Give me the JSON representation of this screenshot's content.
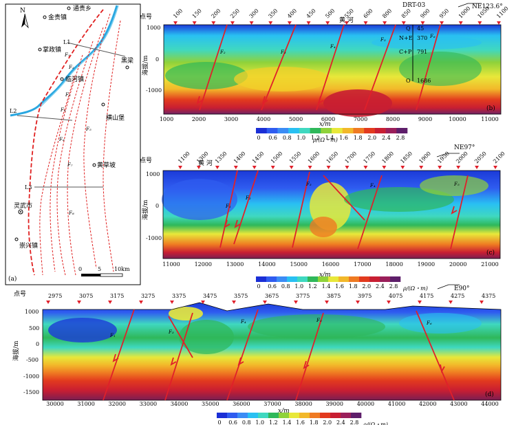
{
  "map": {
    "panel_label": "(a)",
    "north": "N",
    "towns": [
      "通贵乡",
      "金贵镇",
      "掌政镇",
      "临河镇",
      "黑梁",
      "横山堡",
      "黄草坡",
      "灵武市",
      "崇兴镇"
    ],
    "lines": [
      "L1",
      "L2",
      "L3"
    ],
    "faults": [
      "F₁",
      "F₂",
      "F₃",
      "F₄",
      "F₅",
      "F₆",
      "F₇",
      "F₈"
    ],
    "scale_labels": [
      "0",
      "5",
      "10km"
    ]
  },
  "common": {
    "station_label": "点号",
    "elevation_label": "海拔/m",
    "x_label": "x/m",
    "colorbar_unit": "ρ/(Ω・m)",
    "colorbar_ticks": [
      "0",
      "0.6",
      "0.8",
      "1.0",
      "1.2",
      "1.4",
      "1.6",
      "1.8",
      "2.0",
      "2.4",
      "2.8"
    ],
    "colorbar_colors": [
      "#1b2fd6",
      "#2f5cf0",
      "#3b8cf5",
      "#29c0f2",
      "#3fd8c0",
      "#2fb85a",
      "#8fd23a",
      "#e8e83a",
      "#f2b82a",
      "#ef7a22",
      "#e23a1e",
      "#c81e32",
      "#9a1e5a",
      "#5e1e6a"
    ]
  },
  "panels": [
    {
      "label": "(b)",
      "azimuth": "NE123.6°",
      "river": "黄 河",
      "stations": [
        "100",
        "150",
        "200",
        "250",
        "300",
        "350",
        "400",
        "450",
        "500",
        "550",
        "600",
        "800",
        "850",
        "900",
        "950",
        "1000",
        "1050",
        "1100"
      ],
      "y_ticks": [
        "1000",
        "0",
        "-1000"
      ],
      "x_ticks": [
        "1000",
        "2000",
        "3000",
        "4000",
        "5000",
        "6000",
        "7000",
        "8000",
        "9000",
        "10000",
        "11000"
      ],
      "faults": [
        "F₂",
        "F₃",
        "F₄",
        "F₅",
        "F₆"
      ],
      "well": {
        "name": "DRT-03",
        "strata": [
          "Q",
          "N+E",
          "C+P",
          "O"
        ],
        "depths": [
          "45",
          "370",
          "791",
          "1686"
        ]
      }
    },
    {
      "label": "(c)",
      "azimuth": "NE97°",
      "river": "黄 河",
      "stations": [
        "1100",
        "1300",
        "1350",
        "1400",
        "1450",
        "1500",
        "1550",
        "1600",
        "1650",
        "1700",
        "1750",
        "1800",
        "1850",
        "1900",
        "1950",
        "2000",
        "2050",
        "2100"
      ],
      "y_ticks": [
        "1000",
        "0",
        "-1000"
      ],
      "x_ticks": [
        "11000",
        "12000",
        "13000",
        "14000",
        "15000",
        "16000",
        "17000",
        "18000",
        "19000",
        "20000",
        "21000"
      ],
      "faults": [
        "F₁",
        "F₂",
        "F₃",
        "F₄",
        "F₅"
      ]
    },
    {
      "label": "(d)",
      "azimuth": "E90°",
      "stations": [
        "2975",
        "3075",
        "3175",
        "3275",
        "3375",
        "3475",
        "3575",
        "3675",
        "3775",
        "3875",
        "3975",
        "4075",
        "4175",
        "4275",
        "4375"
      ],
      "y_ticks": [
        "1000",
        "500",
        "0",
        "-500",
        "-1000",
        "-1500"
      ],
      "x_ticks": [
        "30000",
        "31000",
        "32000",
        "33000",
        "34000",
        "35000",
        "36000",
        "37000",
        "38000",
        "39000",
        "40000",
        "41000",
        "42000",
        "43000",
        "44000"
      ],
      "faults": [
        "F₁",
        "F₃",
        "F₄",
        "F₅",
        "F₆"
      ]
    }
  ]
}
